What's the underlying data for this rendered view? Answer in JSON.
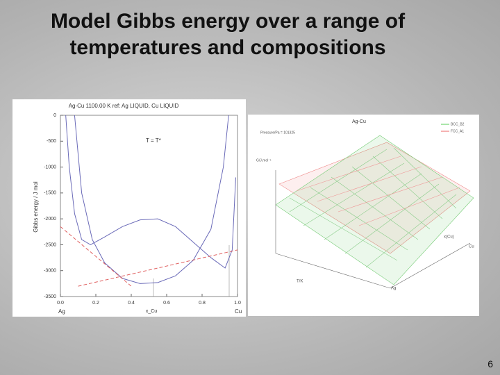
{
  "title": "Model Gibbs energy over a range of temperatures and compositions",
  "page_number": "6",
  "chart_data": {
    "type": "line",
    "title": "Ag-Cu 1100.00 K ref: Ag LIQUID, Cu LIQUID",
    "ylabel": "Gibbs energy / J mol",
    "xlabel": "x_Cu",
    "annotation": "T = T*",
    "x_end_labels": [
      "Ag",
      "Cu"
    ],
    "xlim": [
      0,
      1
    ],
    "ylim": [
      -3500,
      0
    ],
    "xticks": [
      {
        "value": 0,
        "label": "0.0"
      },
      0.2,
      0.4,
      0.6,
      0.8,
      {
        "value": 1,
        "label": "1.0"
      }
    ],
    "yticks": [
      0,
      -500,
      -1000,
      -1500,
      -2000,
      -2500,
      -3000,
      -3500
    ],
    "series": [
      {
        "color": "#6a6ab8",
        "dash": false,
        "x": [
          0.03,
          0.05,
          0.08,
          0.12,
          0.17,
          0.25,
          0.35,
          0.45,
          0.55,
          0.65,
          0.75,
          0.85,
          0.93,
          0.97,
          0.99
        ],
        "values": [
          0,
          -1000,
          -1900,
          -2400,
          -2500,
          -2350,
          -2150,
          -2020,
          -2000,
          -2150,
          -2450,
          -2750,
          -2950,
          -2600,
          -1200
        ]
      },
      {
        "color": "#6a6ab8",
        "dash": false,
        "x": [
          0.08,
          0.12,
          0.18,
          0.25,
          0.35,
          0.45,
          0.55,
          0.65,
          0.75,
          0.85,
          0.92,
          0.95
        ],
        "values": [
          0,
          -1500,
          -2400,
          -2850,
          -3150,
          -3250,
          -3230,
          -3100,
          -2800,
          -2200,
          -1000,
          0
        ]
      },
      {
        "color": "#e06060",
        "dash": true,
        "x": [
          0,
          0.4
        ],
        "values": [
          -2150,
          -3300
        ]
      },
      {
        "color": "#e06060",
        "dash": true,
        "x": [
          0.1,
          1
        ],
        "values": [
          -3300,
          -2600
        ]
      }
    ]
  },
  "right_plot": {
    "title": "Ag-Cu",
    "legend": [
      "BCC_B2",
      "FCC_A1"
    ],
    "pressure": "Pressure/Pa = 101325",
    "zlabel": "G/J.mol⁻¹",
    "xlabel": "x(Cu)",
    "tlabel": "T/K",
    "corner_left": "Ag",
    "corner_right": "Cu"
  }
}
